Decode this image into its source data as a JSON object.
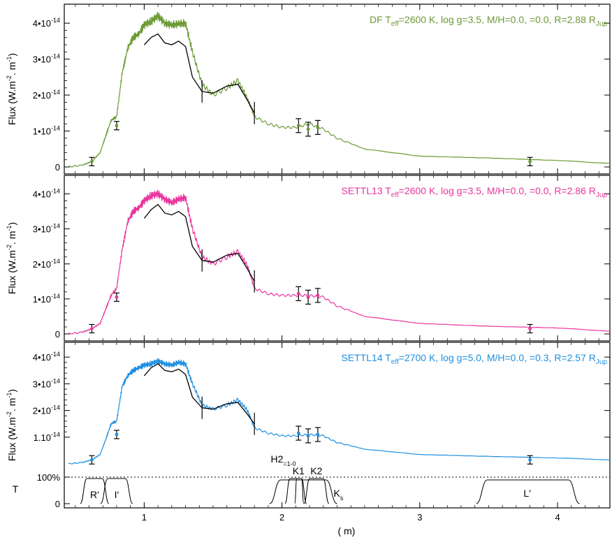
{
  "chart_data": {
    "type": "line",
    "xlabel": "(  m)",
    "x_ticks": [
      "1",
      "2",
      "3",
      "4"
    ],
    "xlim": [
      0.42,
      4.38
    ],
    "panels": [
      {
        "model_label_prefix": "DF T",
        "model_label_sub": "eff",
        "model_label_mid": "=2600 K, log g=3.5, M/H=0.0,   =0.0, R=2.88 R",
        "model_label_sub2": "Jup",
        "color": "#6b9a35",
        "ylabel": "Flux (W.m-2.  m-1)",
        "ylim": [
          0,
          4.45
        ],
        "y_ticks": [
          "4•10-14",
          "3•10-14",
          "2•10-14",
          "1•10-14",
          "0"
        ],
        "series": [
          {
            "name": "DF",
            "x": [
              0.45,
              0.55,
              0.62,
              0.68,
              0.72,
              0.76,
              0.8,
              0.84,
              0.88,
              0.92,
              0.96,
              1.0,
              1.05,
              1.1,
              1.15,
              1.2,
              1.25,
              1.3,
              1.35,
              1.42,
              1.5,
              1.6,
              1.68,
              1.75,
              1.8,
              1.9,
              2.0,
              2.1,
              2.2,
              2.3,
              2.4,
              2.6,
              3.0,
              3.5,
              4.0,
              4.38
            ],
            "y": [
              0.0,
              0.05,
              0.15,
              0.4,
              0.85,
              1.3,
              1.4,
              2.6,
              3.3,
              3.6,
              3.7,
              3.95,
              4.05,
              4.2,
              4.0,
              3.95,
              3.98,
              4.0,
              3.2,
              2.3,
              2.0,
              2.2,
              2.4,
              1.9,
              1.4,
              1.2,
              1.1,
              1.1,
              1.2,
              1.05,
              0.8,
              0.5,
              0.3,
              0.25,
              0.18,
              0.1
            ]
          }
        ],
        "observed": {
          "x": [
            0.62,
            0.8,
            1.0,
            1.05,
            1.1,
            1.15,
            1.2,
            1.25,
            1.3,
            1.35,
            1.42,
            1.5,
            1.6,
            1.68,
            1.75,
            1.8,
            2.12,
            2.19,
            2.26,
            3.8
          ],
          "y": [
            0.15,
            1.15,
            3.4,
            3.6,
            3.7,
            3.45,
            3.4,
            3.5,
            3.35,
            2.5,
            2.1,
            2.05,
            2.25,
            2.3,
            1.85,
            1.5,
            1.15,
            1.05,
            1.1,
            0.15
          ]
        }
      },
      {
        "model_label_prefix": "SETTL13 T",
        "model_label_sub": "eff",
        "model_label_mid": "=2600 K, log g=3.5, M/H=0.0,   =0.0, R=2.86 R",
        "model_label_sub2": "Jup",
        "color": "#e8359e",
        "ylabel": "Flux (W.m-2.  m-1)",
        "ylim": [
          0,
          4.45
        ],
        "y_ticks": [
          "4•10-14",
          "3•10-14",
          "2•10-14",
          "1•10-14",
          "0"
        ],
        "series": [
          {
            "name": "SETTL13",
            "x": [
              0.45,
              0.55,
              0.62,
              0.68,
              0.72,
              0.76,
              0.8,
              0.84,
              0.88,
              0.92,
              0.96,
              1.0,
              1.05,
              1.1,
              1.15,
              1.2,
              1.25,
              1.3,
              1.35,
              1.42,
              1.5,
              1.6,
              1.68,
              1.75,
              1.8,
              1.9,
              2.0,
              2.1,
              2.2,
              2.3,
              2.4,
              2.6,
              3.0,
              3.5,
              4.0,
              4.38
            ],
            "y": [
              0.0,
              0.05,
              0.15,
              0.3,
              0.7,
              1.1,
              1.3,
              2.4,
              3.2,
              3.5,
              3.6,
              3.8,
              3.95,
              4.0,
              3.85,
              3.75,
              3.85,
              3.9,
              3.0,
              2.2,
              2.0,
              2.2,
              2.35,
              1.95,
              1.3,
              1.15,
              1.1,
              1.1,
              1.1,
              1.05,
              0.8,
              0.5,
              0.3,
              0.22,
              0.17,
              0.08
            ]
          }
        ],
        "observed": {
          "x": [
            0.62,
            0.8,
            1.0,
            1.05,
            1.1,
            1.15,
            1.2,
            1.25,
            1.3,
            1.35,
            1.42,
            1.5,
            1.6,
            1.68,
            1.75,
            1.8,
            2.12,
            2.19,
            2.26,
            3.8
          ],
          "y": [
            0.15,
            1.05,
            3.3,
            3.55,
            3.7,
            3.45,
            3.4,
            3.5,
            3.35,
            2.5,
            2.1,
            2.05,
            2.25,
            2.3,
            1.85,
            1.5,
            1.15,
            1.05,
            1.1,
            0.15
          ]
        }
      },
      {
        "model_label_prefix": "SETTL14 T",
        "model_label_sub": "eff",
        "model_label_mid": "=2700 K, log g=5.0, M/H=0.0,   =0.3, R=2.57 R",
        "model_label_sub2": "Jup",
        "color": "#1e8fe0",
        "ylabel": "Flux (W.m-2.  m-1)",
        "ylim": [
          0,
          4.45
        ],
        "y_ticks": [
          "4•10-14",
          "3•10-14",
          "2•10-14",
          "1.10-14",
          ""
        ],
        "series": [
          {
            "name": "SETTL14",
            "x": [
              0.45,
              0.55,
              0.62,
              0.68,
              0.72,
              0.76,
              0.8,
              0.84,
              0.88,
              0.92,
              0.96,
              1.0,
              1.05,
              1.1,
              1.15,
              1.2,
              1.25,
              1.3,
              1.35,
              1.42,
              1.5,
              1.6,
              1.68,
              1.75,
              1.8,
              1.9,
              2.0,
              2.1,
              2.2,
              2.3,
              2.4,
              2.6,
              3.0,
              3.5,
              4.0,
              4.38
            ],
            "y": [
              0.0,
              0.05,
              0.15,
              0.35,
              0.9,
              1.5,
              1.6,
              2.9,
              3.3,
              3.5,
              3.6,
              3.7,
              3.75,
              3.85,
              3.75,
              3.7,
              3.8,
              3.75,
              3.0,
              2.2,
              2.05,
              2.2,
              2.4,
              2.0,
              1.35,
              1.15,
              1.05,
              1.05,
              1.1,
              1.05,
              0.8,
              0.55,
              0.35,
              0.28,
              0.22,
              0.15
            ]
          }
        ],
        "observed": {
          "x": [
            0.62,
            0.8,
            1.0,
            1.05,
            1.1,
            1.15,
            1.2,
            1.25,
            1.3,
            1.35,
            1.42,
            1.5,
            1.6,
            1.68,
            1.75,
            1.8,
            2.12,
            2.19,
            2.26,
            3.8
          ],
          "y": [
            0.15,
            1.1,
            3.3,
            3.6,
            3.75,
            3.5,
            3.45,
            3.55,
            3.35,
            2.5,
            2.1,
            2.05,
            2.25,
            2.3,
            1.85,
            1.5,
            1.15,
            1.05,
            1.1,
            0.15
          ]
        }
      }
    ],
    "transmission": {
      "ylabel": "T",
      "y_ticks": [
        "100%",
        "0"
      ],
      "filters": [
        {
          "name": "R'",
          "range": [
            0.56,
            0.72
          ]
        },
        {
          "name": "I'",
          "range": [
            0.71,
            0.89
          ]
        },
        {
          "name": "H2",
          "sub": "=1-0",
          "range": [
            2.1,
            2.15
          ]
        },
        {
          "name": "K1",
          "range": [
            2.04,
            2.16
          ]
        },
        {
          "name": "K2",
          "range": [
            2.18,
            2.32
          ]
        },
        {
          "name": "K",
          "sub": "s",
          "range": [
            1.95,
            2.36
          ]
        },
        {
          "name": "L'",
          "range": [
            3.45,
            4.12
          ]
        }
      ]
    }
  }
}
